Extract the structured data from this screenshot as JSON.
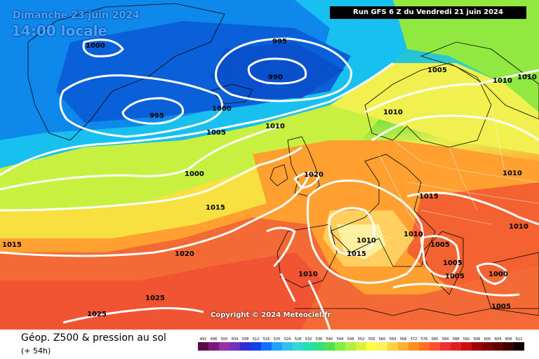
{
  "header": {
    "date": "Dimanche 23 juin 2024",
    "time": "14:00 locale",
    "run": "Run GFS 6 Z du Vendredi 21 juin 2024"
  },
  "footer": {
    "title": "Géop. Z500 & pression au sol",
    "subtitle": "(+ 54h)",
    "copyright": "Copyright © 2024 Meteociel.fr"
  },
  "legend": {
    "values": [
      "492",
      "496",
      "500",
      "504",
      "508",
      "512",
      "516",
      "520",
      "524",
      "528",
      "532",
      "536",
      "540",
      "544",
      "548",
      "552",
      "556",
      "560",
      "564",
      "568",
      "572",
      "576",
      "580",
      "584",
      "588",
      "592",
      "596",
      "600",
      "604",
      "608",
      "612"
    ],
    "colors": [
      "#5a0a4a",
      "#7a1a7a",
      "#9a30a8",
      "#7030c0",
      "#3030d0",
      "#1040e8",
      "#1070ff",
      "#20a0ff",
      "#30c0f0",
      "#30d8d8",
      "#20e0b0",
      "#30e080",
      "#50e050",
      "#80f040",
      "#b0f040",
      "#e0f040",
      "#ffff40",
      "#fff060",
      "#ffd040",
      "#ffb030",
      "#ff9020",
      "#ff7020",
      "#ff5030",
      "#f03030",
      "#e02020",
      "#c81010",
      "#a00000",
      "#800000",
      "#600000",
      "#400000",
      "#100000"
    ]
  },
  "isobars": {
    "labels": [
      "1000",
      "995",
      "990",
      "995",
      "1000",
      "1005",
      "1010",
      "1000",
      "1015",
      "1020",
      "1020",
      "1025",
      "1025",
      "1015",
      "1005",
      "1010",
      "1010",
      "1010",
      "1015",
      "1010",
      "1005",
      "1010",
      "1015",
      "1005",
      "1005",
      "1000",
      "1010",
      "1010",
      "1005",
      "1010"
    ]
  },
  "colors": {
    "blue_low": "#0a6be0",
    "cyan": "#18c8e8",
    "green": "#60e040",
    "yellow": "#f0f050",
    "orange": "#ff9a30",
    "red": "#f25a38"
  }
}
